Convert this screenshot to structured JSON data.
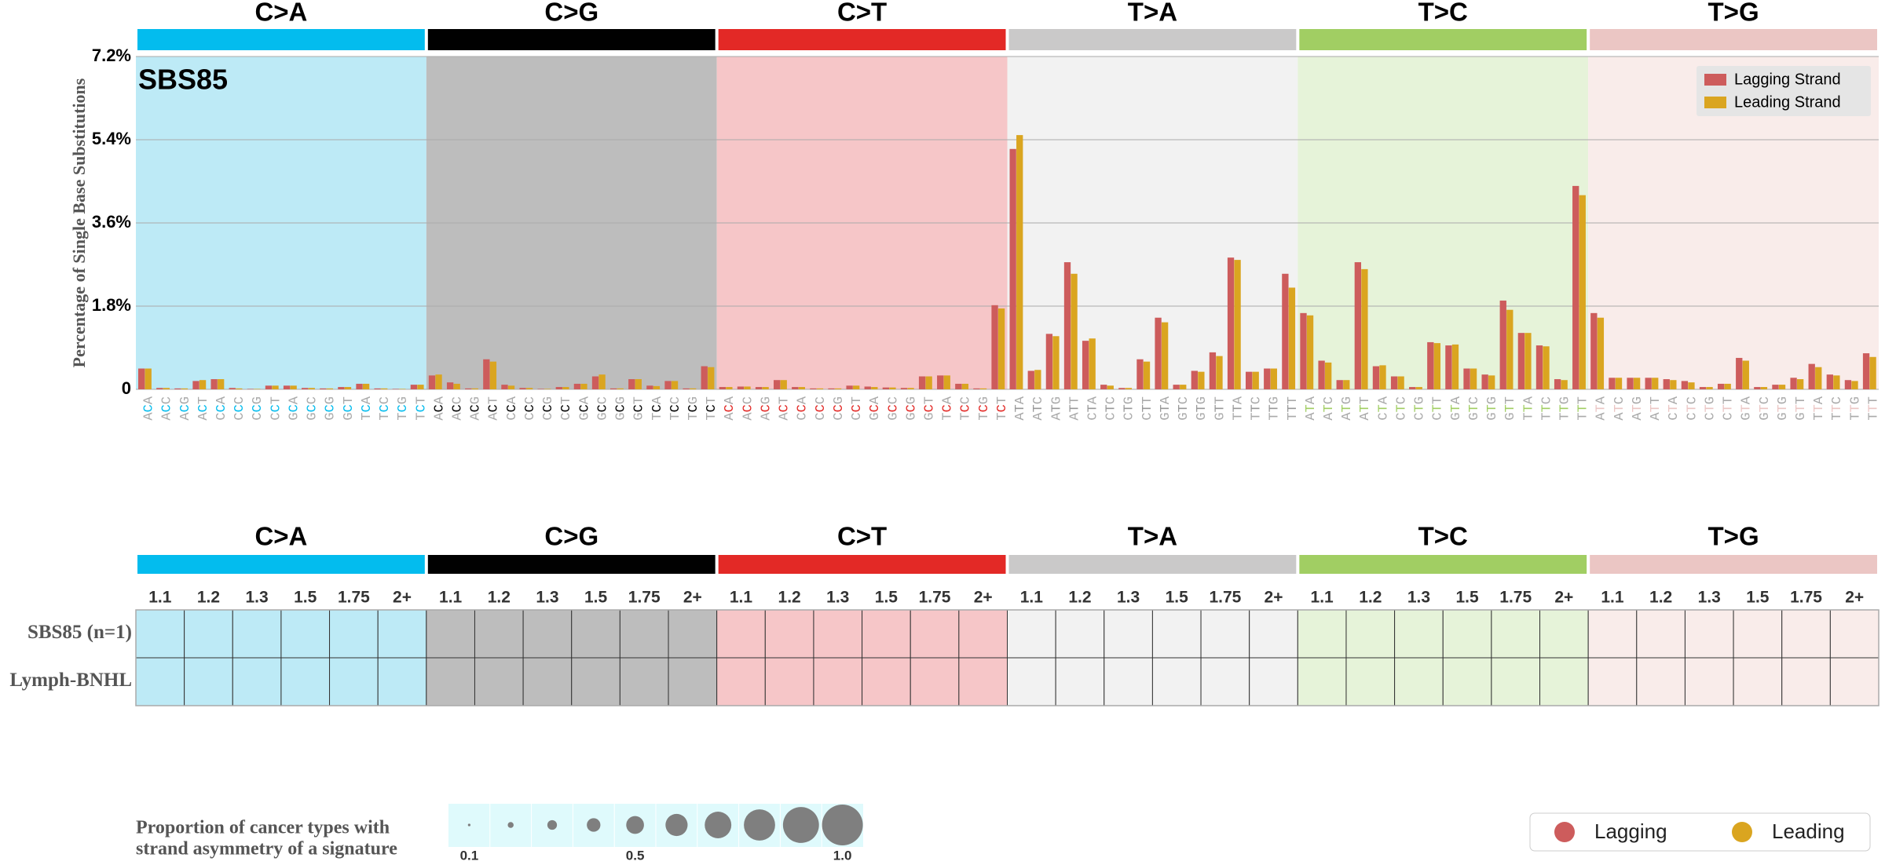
{
  "chart_data": {
    "type": "bar",
    "title": "SBS85",
    "ylabel": "Percentage of Single Base Substitutions",
    "groups": [
      {
        "name": "C>A",
        "color": "#03bcee",
        "background": "#bdeaf6"
      },
      {
        "name": "C>G",
        "color": "#010101",
        "background": "#bdbdbd"
      },
      {
        "name": "C>T",
        "color": "#e32926",
        "background": "#f6c6c8"
      },
      {
        "name": "T>A",
        "color": "#cac9c9",
        "background": "#f2f2f2"
      },
      {
        "name": "T>C",
        "color": "#a1ce63",
        "background": "#e6f3d9"
      },
      {
        "name": "T>G",
        "color": "#ebc6c4",
        "background": "#f9ecea"
      }
    ],
    "categories": [
      "ACA",
      "ACC",
      "ACG",
      "ACT",
      "CCA",
      "CCC",
      "CCG",
      "CCT",
      "GCA",
      "GCC",
      "GCG",
      "GCT",
      "TCA",
      "TCC",
      "TCG",
      "TCT",
      "ACA",
      "ACC",
      "ACG",
      "ACT",
      "CCA",
      "CCC",
      "CCG",
      "CCT",
      "GCA",
      "GCC",
      "GCG",
      "GCT",
      "TCA",
      "TCC",
      "TCG",
      "TCT",
      "ACA",
      "ACC",
      "ACG",
      "ACT",
      "CCA",
      "CCC",
      "CCG",
      "CCT",
      "GCA",
      "GCC",
      "GCG",
      "GCT",
      "TCA",
      "TCC",
      "TCG",
      "TCT",
      "ATA",
      "ATC",
      "ATG",
      "ATT",
      "CTA",
      "CTC",
      "CTG",
      "CTT",
      "GTA",
      "GTC",
      "GTG",
      "GTT",
      "TTA",
      "TTC",
      "TTG",
      "TTT",
      "ATA",
      "ATC",
      "ATG",
      "ATT",
      "CTA",
      "CTC",
      "CTG",
      "CTT",
      "GTA",
      "GTC",
      "GTG",
      "GTT",
      "TTA",
      "TTC",
      "TTG",
      "TTT",
      "ATA",
      "ATC",
      "ATG",
      "ATT",
      "CTA",
      "CTC",
      "CTG",
      "CTT",
      "GTA",
      "GTC",
      "GTG",
      "GTT",
      "TTA",
      "TTC",
      "TTG",
      "TTT"
    ],
    "series": [
      {
        "name": "Lagging Strand",
        "color": "#cd5c5c",
        "values": [
          0.45,
          0.03,
          0.02,
          0.18,
          0.22,
          0.03,
          0.01,
          0.08,
          0.08,
          0.03,
          0.02,
          0.05,
          0.12,
          0.02,
          0.01,
          0.1,
          0.3,
          0.15,
          0.02,
          0.65,
          0.1,
          0.03,
          0.01,
          0.05,
          0.12,
          0.28,
          0.02,
          0.22,
          0.08,
          0.18,
          0.02,
          0.5,
          0.05,
          0.06,
          0.05,
          0.2,
          0.05,
          0.02,
          0.02,
          0.08,
          0.06,
          0.04,
          0.03,
          0.28,
          0.3,
          0.12,
          0.02,
          1.82,
          5.2,
          0.4,
          1.2,
          2.75,
          1.05,
          0.1,
          0.03,
          0.65,
          1.55,
          0.1,
          0.4,
          0.8,
          2.85,
          0.38,
          0.45,
          2.5,
          1.65,
          0.62,
          0.2,
          2.75,
          0.5,
          0.28,
          0.05,
          1.02,
          0.95,
          0.45,
          0.32,
          1.92,
          1.22,
          0.95,
          0.22,
          4.4,
          1.65,
          0.25,
          0.25,
          0.25,
          0.22,
          0.18,
          0.05,
          0.12,
          0.68,
          0.05,
          0.1,
          0.25,
          0.55,
          0.32,
          0.2,
          0.78
        ]
      },
      {
        "name": "Leading Strand",
        "color": "#daa520",
        "values": [
          0.45,
          0.03,
          0.02,
          0.2,
          0.22,
          0.02,
          0.01,
          0.08,
          0.08,
          0.03,
          0.02,
          0.05,
          0.12,
          0.02,
          0.01,
          0.1,
          0.32,
          0.12,
          0.02,
          0.6,
          0.08,
          0.03,
          0.01,
          0.05,
          0.12,
          0.32,
          0.02,
          0.22,
          0.07,
          0.18,
          0.02,
          0.48,
          0.05,
          0.06,
          0.05,
          0.2,
          0.05,
          0.02,
          0.02,
          0.08,
          0.05,
          0.04,
          0.03,
          0.28,
          0.3,
          0.12,
          0.02,
          1.75,
          5.5,
          0.42,
          1.15,
          2.5,
          1.1,
          0.08,
          0.03,
          0.6,
          1.45,
          0.1,
          0.38,
          0.72,
          2.8,
          0.38,
          0.45,
          2.2,
          1.6,
          0.58,
          0.2,
          2.6,
          0.52,
          0.28,
          0.05,
          1.0,
          0.97,
          0.45,
          0.3,
          1.72,
          1.22,
          0.93,
          0.2,
          4.2,
          1.55,
          0.25,
          0.25,
          0.25,
          0.2,
          0.15,
          0.05,
          0.12,
          0.62,
          0.05,
          0.1,
          0.22,
          0.48,
          0.3,
          0.18,
          0.7
        ]
      }
    ],
    "ylim": [
      0,
      7.2
    ],
    "yticks": [
      0,
      {
        "value": 1.8,
        "label": "1.8%"
      },
      {
        "value": 3.6,
        "label": "3.6%"
      },
      {
        "value": 5.4,
        "label": "5.4%"
      },
      {
        "value": 7.2,
        "label": "7.2%"
      }
    ],
    "grid": true,
    "legend": "upper right"
  },
  "asymmetry_panel": {
    "bins": [
      "1.1",
      "1.2",
      "1.3",
      "1.5",
      "1.75",
      "2+"
    ],
    "rows": [
      "SBS85 (n=1)",
      "Lymph-BNHL"
    ]
  },
  "size_legend": {
    "title_lines": [
      "Proportion of cancer types with",
      "strand asymmetry of a signature"
    ],
    "sizes": [
      0.1,
      0.2,
      0.3,
      0.4,
      0.5,
      0.6,
      0.7,
      0.8,
      0.9,
      1.0
    ],
    "ticks": [
      0.1,
      0.5,
      {
        "value": 1,
        "label": "1.0"
      }
    ]
  },
  "strand_legend": {
    "labels": [
      "Lagging",
      "Leading"
    ]
  }
}
